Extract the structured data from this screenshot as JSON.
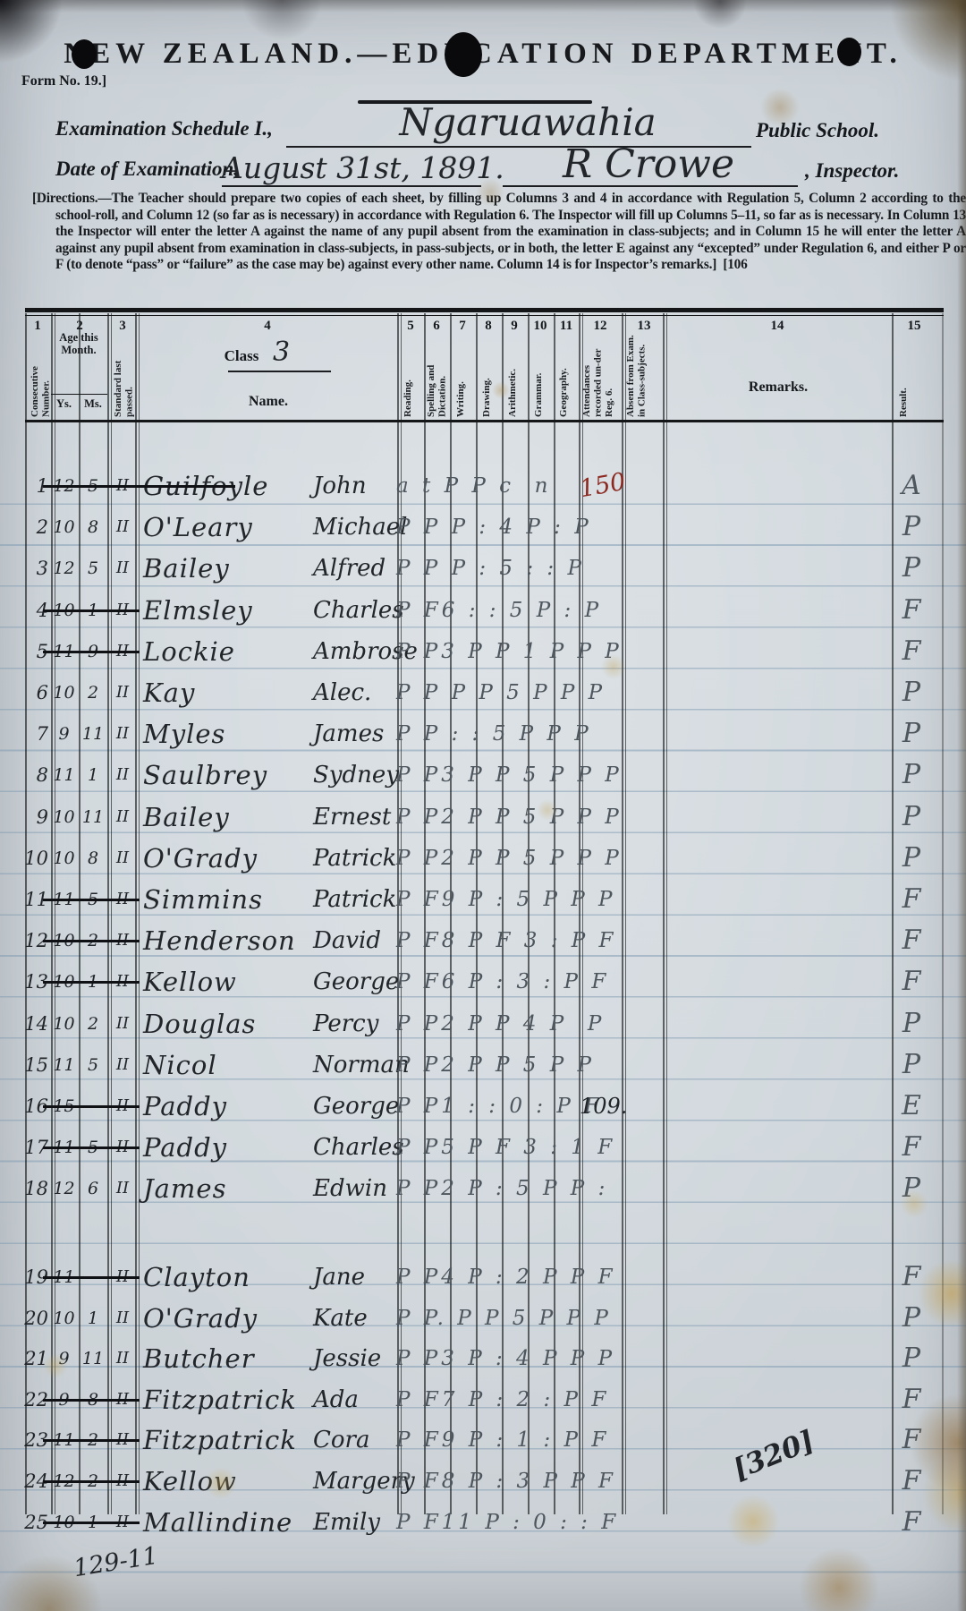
{
  "header": {
    "title": "NEW ZEALAND.—EDUCATION DEPARTMENT.",
    "form_no": "Form No. 19.]",
    "schedule_label": "Examination Schedule I.,",
    "school_name": "Ngaruawahia",
    "school_suffix": "Public School.",
    "date_label": "Date of Examination,",
    "date_value": "August 31st, 1891.",
    "inspector_name": "R Crowe",
    "inspector_suffix": ", Inspector.",
    "directions": "[Directions.—The Teacher should prepare two copies of each sheet, by filling up Columns 3 and 4 in accordance with Regulation 5, Column 2 according to the school-roll, and Column 12 (so far as is necessary) in accordance with Regulation 6.  The Inspector will fill up Columns 5–11, so far as is necessary.  In Column 13 the Inspector will enter the letter A against the name of any pupil absent from the examination in class-subjects; and in Column 15 he will enter the letter A against any pupil absent from examination in class-subjects, in pass-subjects, or in both, the letter E against any “excepted” under Regulation 6, and either P or F (to denote “pass” or “failure” as the case may be) against every other name.   Column 14 is for Inspector’s remarks.]",
    "page_ref": "[106"
  },
  "table": {
    "class_label": "Class",
    "class_value": "3",
    "age_sub_ys": "Ys.",
    "age_sub_ms": "Ms.",
    "columns": [
      {
        "no": "1",
        "label": "Consecutive Number."
      },
      {
        "no": "2",
        "label": "Age this Month."
      },
      {
        "no": "3",
        "label": "Standard last passed."
      },
      {
        "no": "4",
        "label": "Name."
      },
      {
        "no": "5",
        "label": "Reading."
      },
      {
        "no": "6",
        "label": "Spelling and Dictation."
      },
      {
        "no": "7",
        "label": "Writing."
      },
      {
        "no": "8",
        "label": "Drawing."
      },
      {
        "no": "9",
        "label": "Arithmetic."
      },
      {
        "no": "10",
        "label": "Grammar."
      },
      {
        "no": "11",
        "label": "Geography."
      },
      {
        "no": "12",
        "label": "Attendances recorded un-der Reg. 6."
      },
      {
        "no": "13",
        "label": "Absent from Exam. in Class-subjects."
      },
      {
        "no": "14",
        "label": "Remarks."
      },
      {
        "no": "15",
        "label": "Result."
      }
    ],
    "rows": [
      {
        "n": "1",
        "ys": "12",
        "ms": "5",
        "struck": true,
        "std": "II",
        "sur": "Guilfoyle",
        "giv": "John",
        "marks": "a t P P c  n",
        "att": "150",
        "att_red": true,
        "res": "A"
      },
      {
        "n": "2",
        "ys": "10",
        "ms": "8",
        "struck": false,
        "std": "II",
        "sur": "O'Leary",
        "giv": "Michael",
        "marks": "P P P : 4 P : P",
        "att": "",
        "att_red": false,
        "res": "P"
      },
      {
        "n": "3",
        "ys": "12",
        "ms": "5",
        "struck": false,
        "std": "II",
        "sur": "Bailey",
        "giv": "Alfred",
        "marks": "P P P : 5 : : P",
        "att": "",
        "att_red": false,
        "res": "P"
      },
      {
        "n": "4",
        "ys": "10",
        "ms": "1",
        "struck": true,
        "std": "II",
        "sur": "Elmsley",
        "giv": "Charles",
        "marks": "P F6 : : 5 P : P",
        "att": "",
        "att_red": false,
        "res": "F"
      },
      {
        "n": "5",
        "ys": "11",
        "ms": "9",
        "struck": true,
        "std": "II",
        "sur": "Lockie",
        "giv": "Ambrose",
        "marks": "P P3 P P 1 P P P",
        "att": "",
        "att_red": false,
        "res": "F"
      },
      {
        "n": "6",
        "ys": "10",
        "ms": "2",
        "struck": false,
        "std": "II",
        "sur": "Kay",
        "giv": "Alec.",
        "marks": "P P P P 5 P P P",
        "att": "",
        "att_red": false,
        "res": "P"
      },
      {
        "n": "7",
        "ys": "9",
        "ms": "11",
        "struck": false,
        "std": "II",
        "sur": "Myles",
        "giv": "James",
        "marks": "P P : : 5 P P P",
        "att": "",
        "att_red": false,
        "res": "P"
      },
      {
        "n": "8",
        "ys": "11",
        "ms": "1",
        "struck": false,
        "std": "II",
        "sur": "Saulbrey",
        "giv": "Sydney",
        "marks": "P P3 P P 5 P P P",
        "att": "",
        "att_red": false,
        "res": "P"
      },
      {
        "n": "9",
        "ys": "10",
        "ms": "11",
        "struck": false,
        "std": "II",
        "sur": "Bailey",
        "giv": "Ernest",
        "marks": "P P2 P P 5 P P P",
        "att": "",
        "att_red": false,
        "res": "P"
      },
      {
        "n": "10",
        "ys": "10",
        "ms": "8",
        "struck": false,
        "std": "II",
        "sur": "O'Grady",
        "giv": "Patrick",
        "marks": "P P2 P P 5 P P P",
        "att": "",
        "att_red": false,
        "res": "P"
      },
      {
        "n": "11",
        "ys": "11",
        "ms": "5",
        "struck": true,
        "std": "II",
        "sur": "Simmins",
        "giv": "Patrick",
        "marks": "P F9 P : 5 P P P",
        "att": "",
        "att_red": false,
        "res": "F"
      },
      {
        "n": "12",
        "ys": "10",
        "ms": "2",
        "struck": true,
        "std": "II",
        "sur": "Henderson",
        "giv": "David",
        "marks": "P F8 P F 3 : P F",
        "att": "",
        "att_red": false,
        "res": "F"
      },
      {
        "n": "13",
        "ys": "10",
        "ms": "1",
        "struck": true,
        "std": "II",
        "sur": "Kellow",
        "giv": "George",
        "marks": "P F6 P : 3 : P F",
        "att": "",
        "att_red": false,
        "res": "F"
      },
      {
        "n": "14",
        "ys": "10",
        "ms": "2",
        "struck": false,
        "std": "II",
        "sur": "Douglas",
        "giv": "Percy",
        "marks": "P P2 P P 4 P  P",
        "att": "",
        "att_red": false,
        "res": "P"
      },
      {
        "n": "15",
        "ys": "11",
        "ms": "5",
        "struck": false,
        "std": "II",
        "sur": "Nicol",
        "giv": "Norman",
        "marks": "P P2 P P 5 P P",
        "att": "",
        "att_red": false,
        "res": "P"
      },
      {
        "n": "16",
        "ys": "15",
        "ms": "-",
        "struck": true,
        "std": "II",
        "sur": "Paddy",
        "giv": "George",
        "marks": "P P1 : : 0 : P F",
        "att": "109.",
        "att_red": false,
        "res": "E"
      },
      {
        "n": "17",
        "ys": "11",
        "ms": "5",
        "struck": true,
        "std": "II",
        "sur": "Paddy",
        "giv": "Charles",
        "marks": "P P5 P F 3 : 1 F",
        "att": "",
        "att_red": false,
        "res": "F"
      },
      {
        "n": "18",
        "ys": "12",
        "ms": "6",
        "struck": false,
        "std": "II",
        "sur": "James",
        "giv": "Edwin",
        "marks": "P P2 P : 5 P P :",
        "att": "",
        "att_red": false,
        "res": "P"
      },
      {
        "n": "19",
        "ys": "11",
        "ms": "-",
        "struck": true,
        "std": "II",
        "sur": "Clayton",
        "giv": "Jane",
        "marks": "P P4 P : 2 P P F",
        "att": "",
        "att_red": false,
        "res": "F"
      },
      {
        "n": "20",
        "ys": "10",
        "ms": "1",
        "struck": false,
        "std": "II",
        "sur": "O'Grady",
        "giv": "Kate",
        "marks": "P P. P P 5 P P P",
        "att": "",
        "att_red": false,
        "res": "P"
      },
      {
        "n": "21",
        "ys": "9",
        "ms": "11",
        "struck": false,
        "std": "II",
        "sur": "Butcher",
        "giv": "Jessie",
        "marks": "P P3 P : 4 P P P",
        "att": "",
        "att_red": false,
        "res": "P"
      },
      {
        "n": "22",
        "ys": "9",
        "ms": "8",
        "struck": true,
        "std": "II",
        "sur": "Fitzpatrick",
        "giv": "Ada",
        "marks": "P F7 P : 2 : P F",
        "att": "",
        "att_red": false,
        "res": "F"
      },
      {
        "n": "23",
        "ys": "11",
        "ms": "2",
        "struck": true,
        "std": "II",
        "sur": "Fitzpatrick",
        "giv": "Cora",
        "marks": "P F9 P : 1 : P F",
        "att": "",
        "att_red": false,
        "res": "F"
      },
      {
        "n": "24",
        "ys": "12",
        "ms": "2",
        "struck": true,
        "std": "II",
        "sur": "Kellow",
        "giv": "Margery",
        "marks": "P F8 P : 3 P P F",
        "att": "",
        "att_red": false,
        "res": "F"
      },
      {
        "n": "25",
        "ys": "10",
        "ms": "1",
        "struck": true,
        "std": "II",
        "sur": "Mallindine",
        "giv": "Emily",
        "marks": "P F11 P : 0 : : F",
        "att": "",
        "att_red": false,
        "res": "F"
      }
    ]
  },
  "annotations": {
    "remarks_note": "[320]",
    "footer_note": "129-11"
  },
  "colors": {
    "ink": "#22262b",
    "pencil": "#4e565e",
    "red_ink": "#8c2a22",
    "paper": "#ced5da",
    "rule_blue": "#7d98b0"
  }
}
